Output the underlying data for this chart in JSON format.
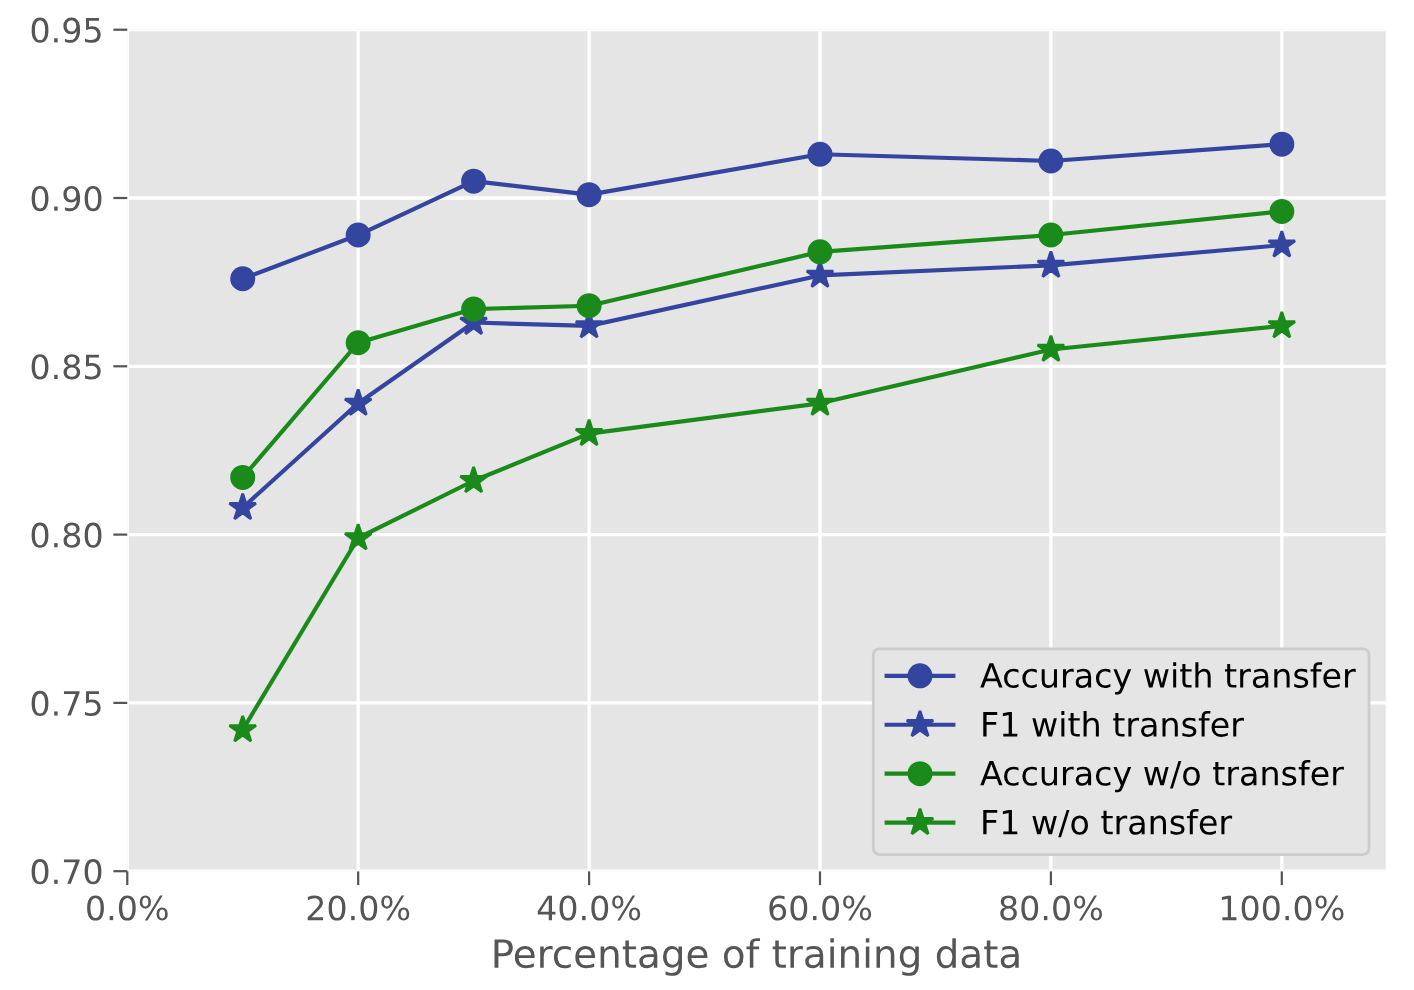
{
  "chart_data": {
    "type": "line",
    "xlabel": "Percentage of training data",
    "x": [
      0.1,
      0.2,
      0.3,
      0.4,
      0.6,
      0.8,
      1.0
    ],
    "series": [
      {
        "name": "Accuracy with transfer",
        "color": "#3445a0",
        "marker": "circle",
        "values": [
          0.876,
          0.889,
          0.905,
          0.901,
          0.913,
          0.911,
          0.916
        ]
      },
      {
        "name": "F1 with transfer",
        "color": "#3445a0",
        "marker": "star",
        "values": [
          0.808,
          0.839,
          0.863,
          0.862,
          0.877,
          0.88,
          0.886
        ]
      },
      {
        "name": "Accuracy w/o transfer",
        "color": "#1a8a1a",
        "marker": "circle",
        "values": [
          0.817,
          0.857,
          0.867,
          0.868,
          0.884,
          0.889,
          0.896
        ]
      },
      {
        "name": "F1 w/o transfer",
        "color": "#1a8a1a",
        "marker": "star",
        "values": [
          0.742,
          0.799,
          0.816,
          0.83,
          0.839,
          0.855,
          0.862
        ]
      }
    ],
    "xlim": [
      0,
      1.09
    ],
    "xticks": [
      {
        "value": 0,
        "label": "0.0%"
      },
      {
        "value": 0.2,
        "label": "20.0%"
      },
      {
        "value": 0.4,
        "label": "40.0%"
      },
      {
        "value": 0.6,
        "label": "60.0%"
      },
      {
        "value": 0.8,
        "label": "80.0%"
      },
      {
        "value": 1.0,
        "label": "100.0%"
      }
    ],
    "ylim": [
      0.7,
      0.95
    ],
    "yticks": [
      {
        "value": 0.7,
        "label": "0.70"
      },
      {
        "value": 0.75,
        "label": "0.75"
      },
      {
        "value": 0.8,
        "label": "0.80"
      },
      {
        "value": 0.85,
        "label": "0.85"
      },
      {
        "value": 0.9,
        "label": "0.90"
      },
      {
        "value": 0.95,
        "label": "0.95"
      }
    ],
    "grid": true,
    "legend": "bottom right",
    "line_style": "solid"
  }
}
